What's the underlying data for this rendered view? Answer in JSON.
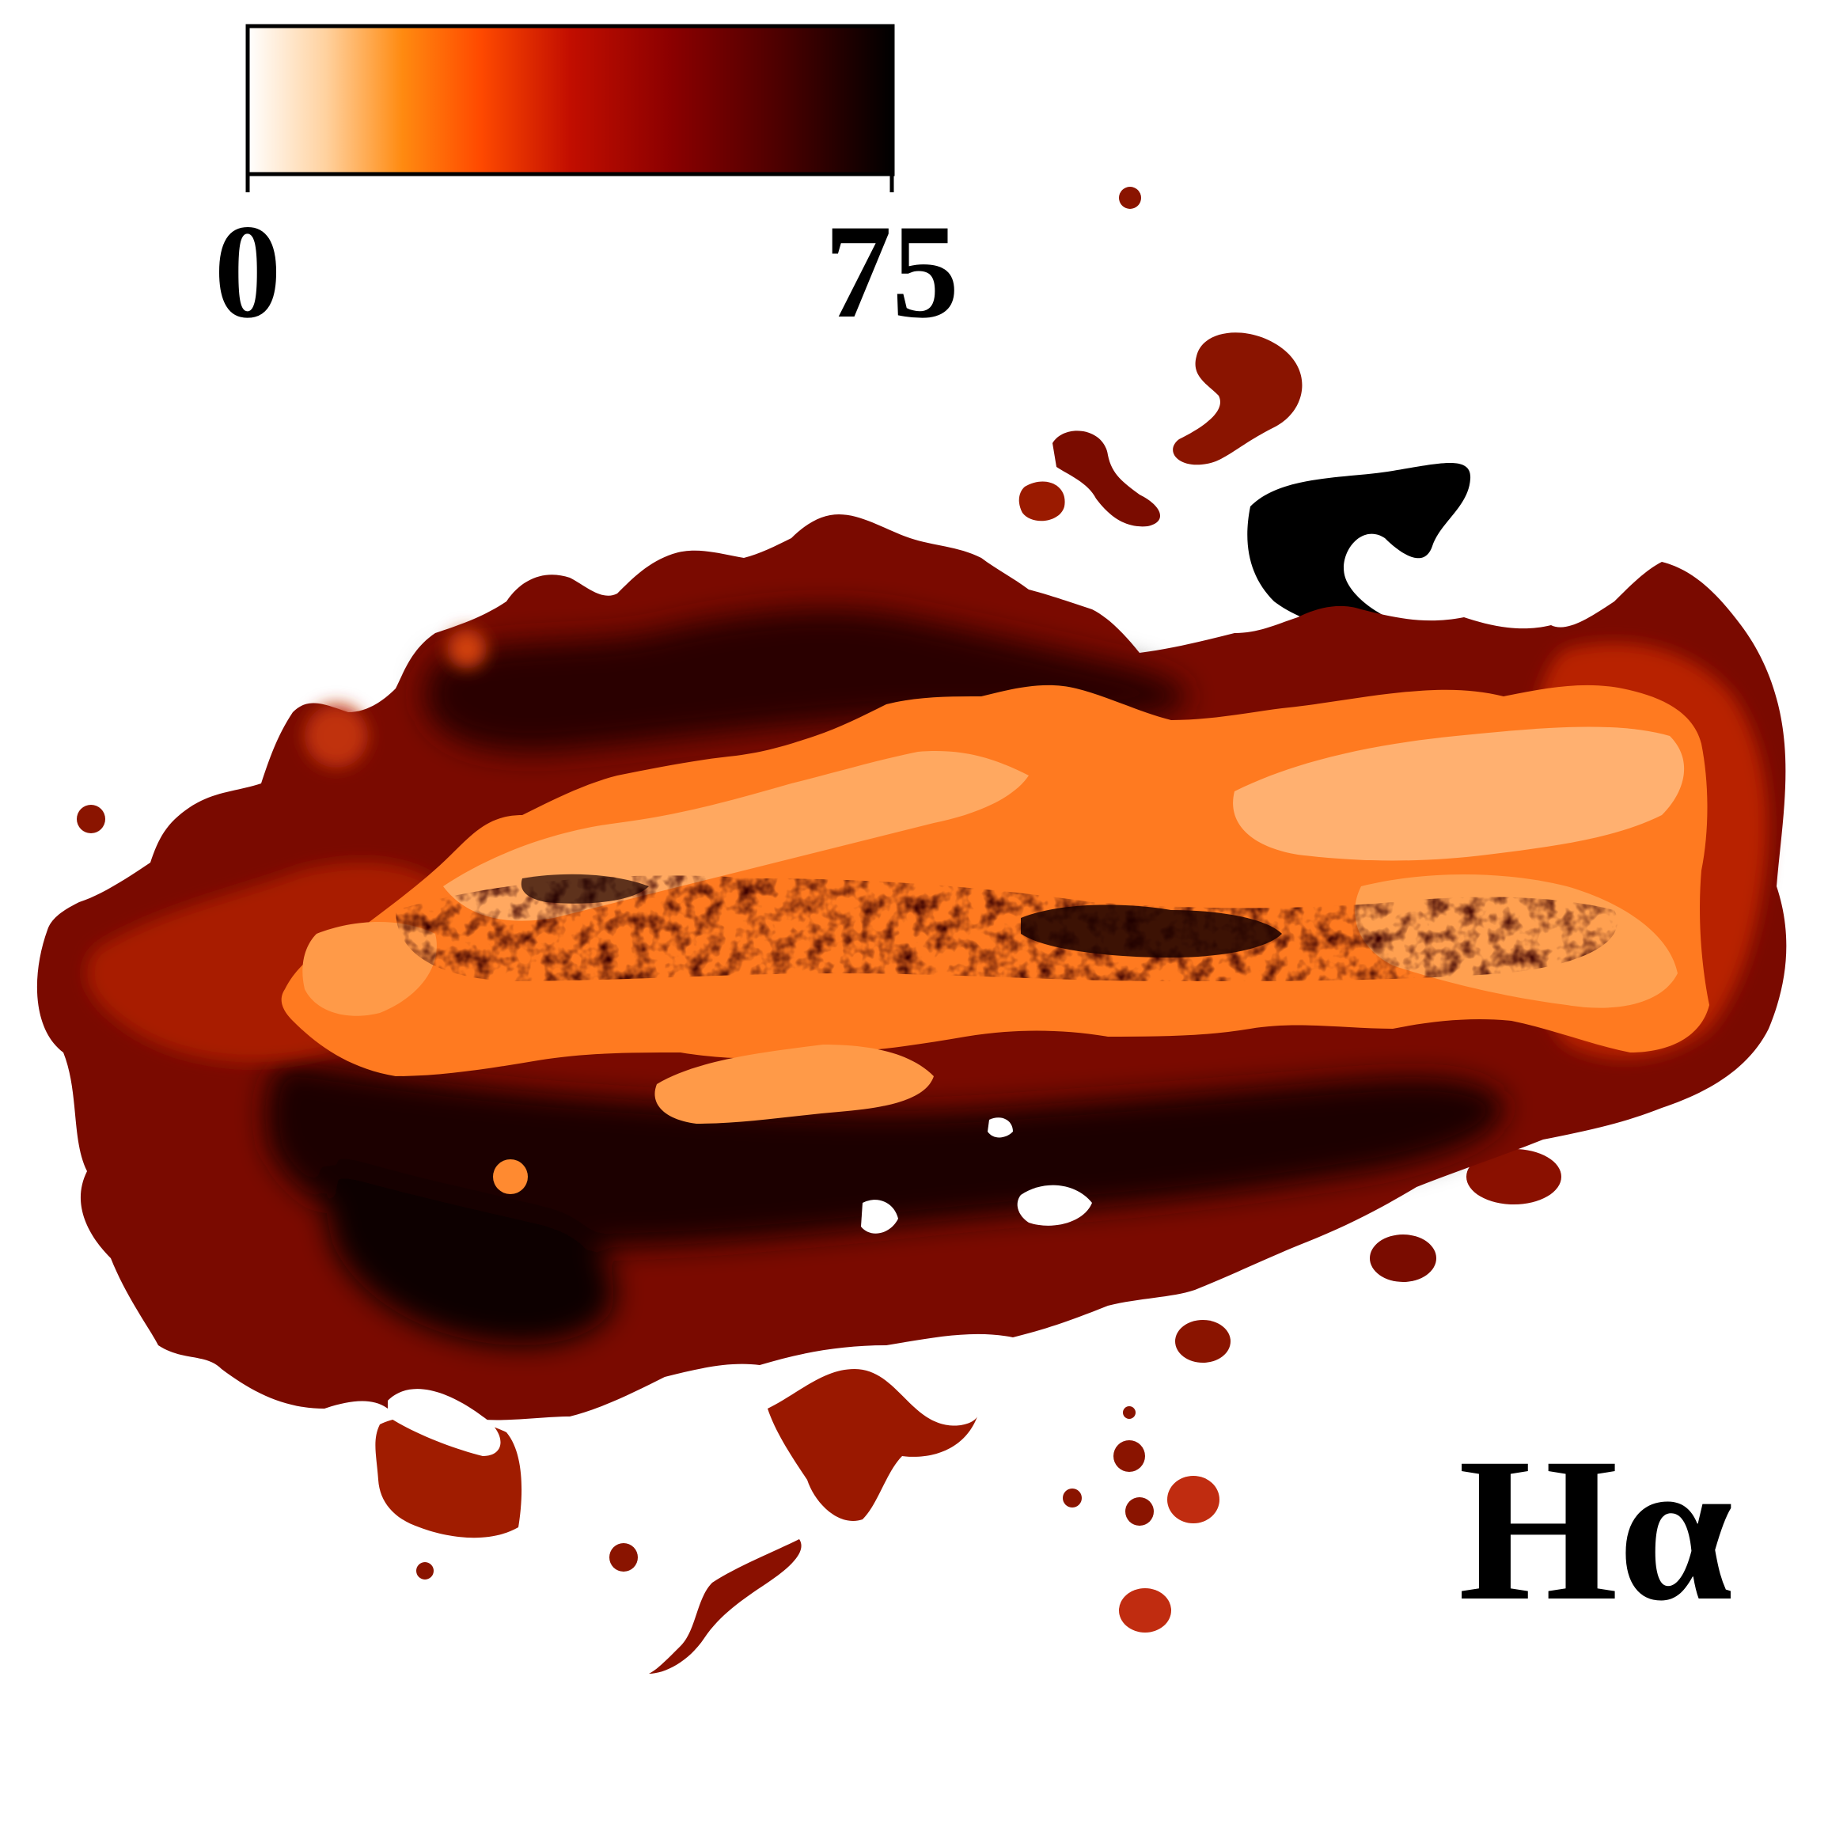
{
  "figure": {
    "panel_label": "Hα",
    "description_icon": "emission-map-image"
  },
  "colorbar": {
    "min_label": "0",
    "max_label": "75",
    "range": [
      0,
      75
    ],
    "colormap": "gist_heat_r",
    "stops": [
      "#ffffff",
      "#ffd2a0",
      "#ff8a10",
      "#ff4a00",
      "#c20e00",
      "#8a0000",
      "#4a0000",
      "#000000"
    ]
  },
  "colors": {
    "background": "#ffffff",
    "outline": "#000000",
    "bright": "#ffa860",
    "hot": "#ff7a20",
    "mid": "#c83010",
    "dark": "#6e0800",
    "deep": "#000000"
  }
}
